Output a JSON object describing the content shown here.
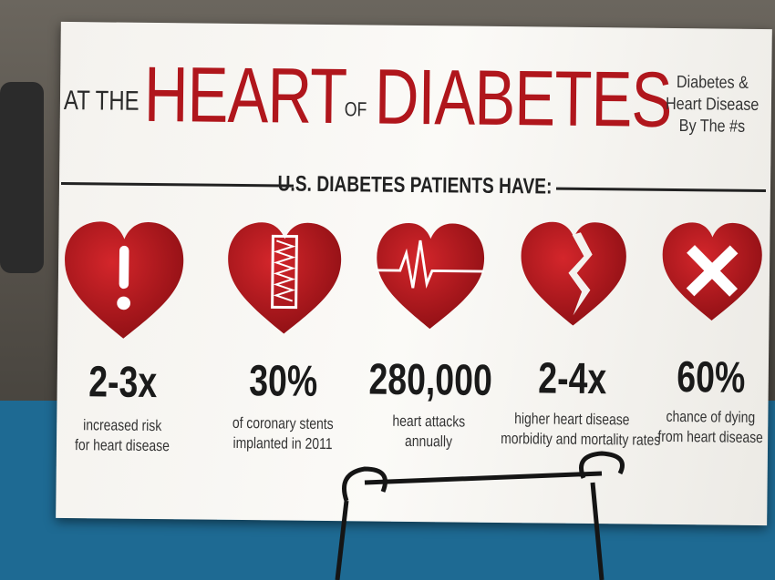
{
  "header": {
    "prefix": "AT THE",
    "word1": "HEART",
    "joiner": "OF",
    "word2": "DIABETES",
    "side": [
      "Diabetes &",
      "Heart Disease",
      "By The #s"
    ]
  },
  "subtitle": "U.S. DIABETES PATIENTS HAVE:",
  "stats": [
    {
      "value": "2-3x",
      "lines": [
        "increased risk",
        "for heart disease"
      ]
    },
    {
      "value": "30%",
      "lines": [
        "of coronary stents",
        "implanted in 2011"
      ]
    },
    {
      "value": "280,000",
      "lines": [
        "heart attacks",
        "annually"
      ]
    },
    {
      "value": "2-4x",
      "lines": [
        "higher heart disease",
        "morbidity and mortality rates"
      ]
    },
    {
      "value": "60%",
      "lines": [
        "chance of dying",
        "from heart disease"
      ]
    }
  ]
}
